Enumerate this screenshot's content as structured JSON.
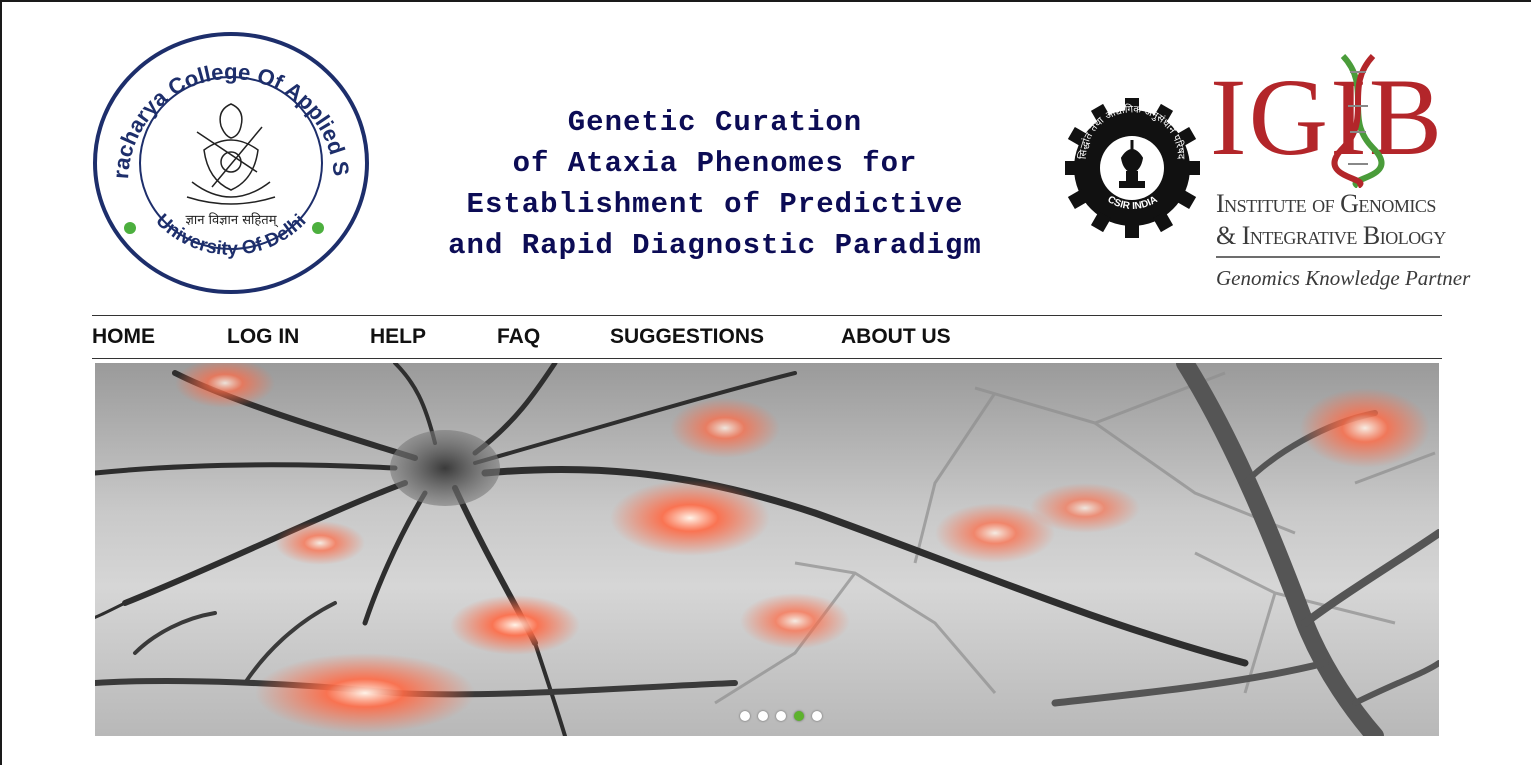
{
  "header": {
    "college_logo": {
      "ring_top": "Bhaskaracharya College Of Applied Sciences",
      "ring_bottom": "University Of Delhi",
      "motto": "ज्ञान विज्ञान सहितम्"
    },
    "title_lines": [
      "Genetic Curation",
      "of Ataxia Phenomes for",
      "Establishment of Predictive",
      "and Rapid Diagnostic Paradigm"
    ],
    "csir_logo": {
      "ring_text": "सिद्धांत तथा औद्योगिक अनुसंधान परिषद",
      "bottom_text": "CSIR INDIA"
    },
    "igib_logo": {
      "big": "IGIB",
      "line1": "Institute of Genomics",
      "line2": "& Integrative Biology",
      "tagline": "Genomics Knowledge Partner"
    }
  },
  "nav": {
    "items": [
      "HOME",
      "LOG IN",
      "HELP",
      "FAQ",
      "SUGGESTIONS",
      "ABOUT US"
    ]
  },
  "slider": {
    "slide_count": 5,
    "active_index": 3,
    "colors": {
      "active_dot": "#5db22c",
      "dot": "#ffffff",
      "glow": "#ff5a3c"
    }
  },
  "colors": {
    "title": "#0c0c55",
    "igib_red": "#b3262a"
  }
}
